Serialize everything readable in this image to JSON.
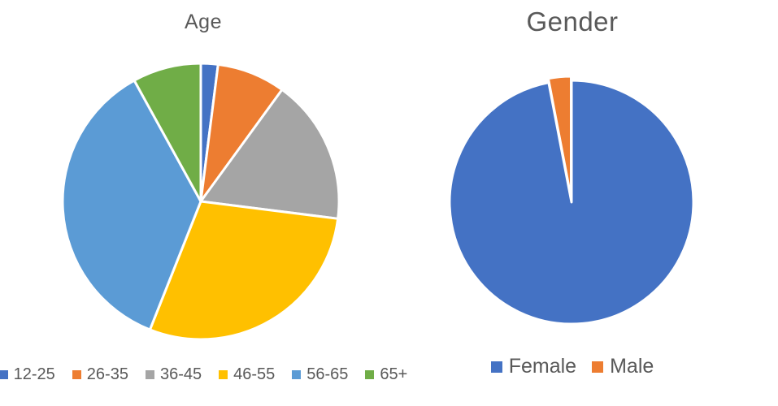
{
  "page": {
    "background": "#ffffff"
  },
  "styles": {
    "title_color": "#595959",
    "legend_text_color": "#595959",
    "slice_border_color": "#ffffff"
  },
  "chart_data": [
    {
      "type": "pie",
      "title": "Age",
      "labels": [
        "12-25",
        "26-35",
        "36-45",
        "46-55",
        "56-65",
        "65+"
      ],
      "values": [
        2,
        8,
        17,
        29,
        36,
        8
      ],
      "unit": "percent_estimated",
      "colors": [
        "#4472C4",
        "#ED7D31",
        "#A5A5A5",
        "#FFC000",
        "#5B9BD5",
        "#70AD47"
      ],
      "explode": [
        0,
        0,
        0,
        0,
        0,
        0
      ],
      "start_angle_deg": 0,
      "direction": "clockwise",
      "legend_position": "bottom",
      "data_labels": false
    },
    {
      "type": "pie",
      "title": "Gender",
      "labels": [
        "Female",
        "Male"
      ],
      "values": [
        97,
        3
      ],
      "unit": "percent_estimated",
      "colors": [
        "#4472C4",
        "#ED7D31"
      ],
      "explode": [
        0,
        5
      ],
      "start_angle_deg": 0,
      "direction": "clockwise",
      "legend_position": "bottom",
      "data_labels": false
    }
  ]
}
